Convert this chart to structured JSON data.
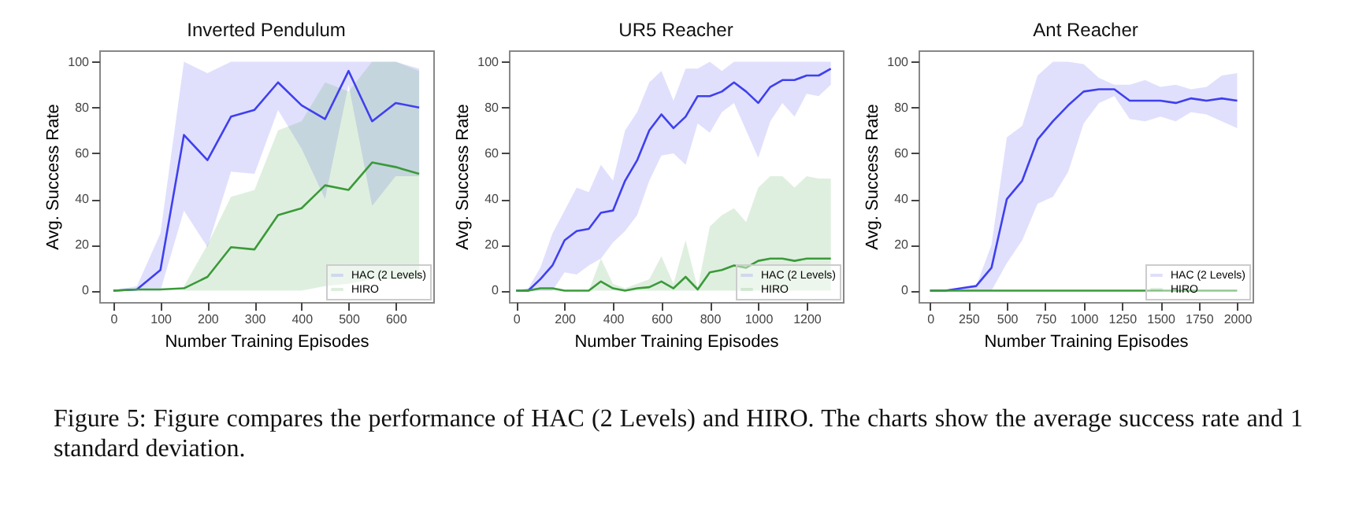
{
  "chart_data": [
    {
      "type": "line",
      "title": "Inverted Pendulum",
      "xlabel": "Number Training Episodes",
      "ylabel": "Avg. Success Rate",
      "x": [
        0,
        50,
        100,
        150,
        200,
        250,
        300,
        350,
        400,
        450,
        500,
        550,
        600,
        650
      ],
      "xlim": [
        -30,
        680
      ],
      "xticks": [
        0,
        100,
        200,
        300,
        400,
        500,
        600
      ],
      "ylim": [
        -5,
        105
      ],
      "yticks": [
        0,
        20,
        40,
        60,
        80,
        100
      ],
      "grid": false,
      "legend": "bottom right",
      "annotations": [
        "Figure 5: Figure compares the performance of HAC (2 Levels) and HIRO. The charts show the average success rate and 1 standard deviation."
      ],
      "series": [
        {
          "name": "HAC (2 Levels)",
          "color": "#3f3ff0",
          "values": [
            0,
            0.5,
            9,
            68,
            57,
            76,
            79,
            91,
            81,
            75,
            96,
            74,
            82,
            80
          ],
          "lower": [
            0,
            0,
            0,
            35,
            19,
            52,
            51,
            79,
            62,
            40,
            90,
            37,
            50,
            50
          ],
          "upper": [
            0,
            2,
            25,
            100,
            95,
            100,
            100,
            100,
            100,
            100,
            100,
            100,
            100,
            97
          ]
        },
        {
          "name": "HIRO",
          "color": "#3a9a3a",
          "values": [
            0,
            0.5,
            0.5,
            1,
            6,
            19,
            18,
            33,
            36,
            46,
            44,
            56,
            54,
            51
          ],
          "lower": [
            null,
            null,
            null,
            0,
            0,
            0,
            0,
            0,
            0,
            2,
            3,
            5,
            5,
            5
          ],
          "upper": [
            null,
            null,
            null,
            2,
            20,
            41,
            44,
            70,
            74,
            91,
            87,
            100,
            100,
            96
          ]
        }
      ]
    },
    {
      "type": "line",
      "title": "UR5 Reacher",
      "xlabel": "Number Training Episodes",
      "ylabel": "Avg. Success Rate",
      "x": [
        0,
        50,
        100,
        150,
        200,
        250,
        300,
        350,
        400,
        450,
        500,
        550,
        600,
        650,
        700,
        750,
        800,
        850,
        900,
        950,
        1000,
        1050,
        1100,
        1150,
        1200,
        1250,
        1300
      ],
      "xlim": [
        -30,
        1350
      ],
      "xticks": [
        0,
        200,
        400,
        600,
        800,
        1000,
        1200
      ],
      "ylim": [
        -5,
        105
      ],
      "yticks": [
        0,
        20,
        40,
        60,
        80,
        100
      ],
      "grid": false,
      "legend": "bottom right",
      "series": [
        {
          "name": "HAC (2 Levels)",
          "color": "#3f3ff0",
          "values": [
            0,
            0,
            5,
            11,
            22,
            26,
            27,
            34,
            35,
            48,
            57,
            70,
            77,
            71,
            76,
            85,
            85,
            87,
            91,
            87,
            82,
            89,
            92,
            92,
            94,
            94,
            97
          ],
          "lower": [
            0,
            0,
            0,
            0,
            8,
            7,
            11,
            14,
            21,
            26,
            33,
            48,
            59,
            60,
            55,
            73,
            69,
            78,
            82,
            70,
            58,
            74,
            82,
            76,
            86,
            85,
            90
          ],
          "upper": [
            0,
            1,
            10,
            25,
            35,
            45,
            43,
            55,
            48,
            70,
            78,
            91,
            96,
            83,
            97,
            97,
            100,
            96,
            100,
            100,
            100,
            100,
            100,
            100,
            100,
            100,
            100
          ]
        },
        {
          "name": "HIRO",
          "color": "#3a9a3a",
          "values": [
            0,
            0,
            1,
            1,
            0,
            0,
            0,
            4,
            1,
            0,
            1,
            1.5,
            4,
            1,
            6,
            0.5,
            8,
            9,
            11,
            10,
            13,
            14,
            14,
            13,
            14,
            14,
            14
          ],
          "lower": [
            0,
            0,
            0,
            0,
            0,
            0,
            0,
            0,
            0,
            0,
            0,
            0,
            0,
            0,
            0,
            0,
            0,
            0,
            0,
            0,
            0,
            0,
            0,
            0,
            0,
            0,
            0
          ],
          "upper": [
            0,
            1,
            1,
            1,
            0,
            0,
            0,
            14,
            3,
            1,
            3,
            5,
            15,
            3,
            22,
            1,
            28,
            33,
            36,
            30,
            45,
            50,
            50,
            45,
            50,
            49,
            49
          ]
        }
      ]
    },
    {
      "type": "line",
      "title": "Ant Reacher",
      "xlabel": "Number Training Episodes",
      "ylabel": "Avg. Success Rate",
      "x": [
        0,
        100,
        200,
        300,
        400,
        500,
        600,
        700,
        800,
        900,
        1000,
        1100,
        1200,
        1300,
        1400,
        1500,
        1600,
        1700,
        1800,
        1900,
        2000
      ],
      "xlim": [
        -75,
        2100
      ],
      "xticks": [
        0,
        250,
        500,
        750,
        1000,
        1250,
        1500,
        1750,
        2000
      ],
      "ylim": [
        -5,
        105
      ],
      "yticks": [
        0,
        20,
        40,
        60,
        80,
        100
      ],
      "grid": false,
      "legend": "bottom right",
      "series": [
        {
          "name": "HAC (2 Levels)",
          "color": "#3f3ff0",
          "values": [
            0,
            0,
            1,
            2,
            10,
            40,
            48,
            66,
            74,
            81,
            87,
            88,
            88,
            83,
            83,
            83,
            82,
            84,
            83,
            84,
            83
          ],
          "lower": [
            0,
            0,
            0,
            0,
            0,
            12,
            22,
            38,
            41,
            52,
            73,
            82,
            85,
            75,
            74,
            76,
            74,
            78,
            77,
            74,
            71
          ],
          "upper": [
            0,
            0,
            1,
            2,
            20,
            67,
            72,
            94,
            100,
            100,
            99,
            93,
            90,
            90,
            92,
            89,
            90,
            88,
            89,
            94,
            95
          ]
        },
        {
          "name": "HIRO",
          "color": "#3a9a3a",
          "values": [
            0,
            0,
            0,
            0,
            0,
            0,
            0,
            0,
            0,
            0,
            0,
            0,
            0,
            0,
            0,
            0,
            0,
            0,
            0,
            0,
            0
          ]
        }
      ]
    }
  ]
}
